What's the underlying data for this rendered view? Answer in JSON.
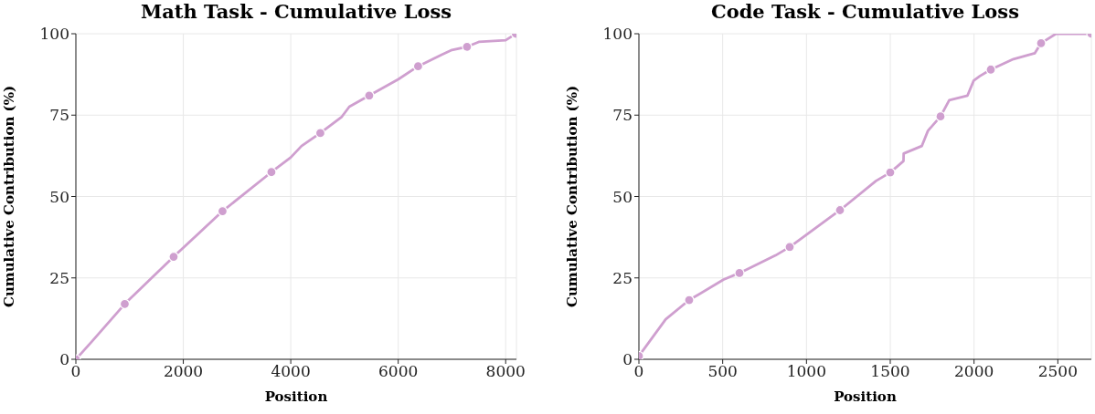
{
  "chart_data": [
    {
      "type": "line",
      "title": "Math Task - Cumulative Loss",
      "xlabel": "Position",
      "ylabel": "Cumulative Contribution (%)",
      "xlim": [
        0,
        8200
      ],
      "xticks": [
        0,
        2000,
        4000,
        6000,
        8000
      ],
      "ylim": [
        0,
        100
      ],
      "yticks": [
        0,
        25,
        50,
        75,
        100
      ],
      "grid": true,
      "series": [
        {
          "color": "#cf9fcf",
          "marker": "none",
          "x": [
            0,
            300,
            910,
            1820,
            2730,
            3640,
            4000,
            4200,
            4550,
            4950,
            5090,
            5460,
            6000,
            6370,
            6800,
            7000,
            7280,
            7500,
            8000,
            8190
          ],
          "values": [
            0,
            5.5,
            17,
            31.5,
            45.5,
            57.5,
            62,
            65.5,
            69.5,
            74.5,
            77.6,
            81,
            86,
            90,
            93.5,
            95,
            96,
            97.5,
            98,
            100
          ]
        },
        {
          "type": "scatter",
          "color": "#cf9fcf",
          "marker": "circle",
          "x": [
            0,
            910,
            1820,
            2730,
            3640,
            4550,
            5460,
            6370,
            7280,
            8190
          ],
          "values": [
            0,
            17,
            31.5,
            45.5,
            57.5,
            69.5,
            81,
            90,
            96,
            100
          ]
        }
      ]
    },
    {
      "type": "line",
      "title": "Code Task - Cumulative Loss",
      "xlabel": "Position",
      "ylabel": "Cumulative Contribution (%)",
      "xlim": [
        0,
        2700
      ],
      "xticks": [
        0,
        500,
        1000,
        1500,
        2000,
        2500
      ],
      "ylim": [
        0,
        100
      ],
      "yticks": [
        0,
        25,
        50,
        75,
        100
      ],
      "grid": true,
      "series": [
        {
          "color": "#cf9fcf",
          "marker": "none",
          "x": [
            0,
            160,
            300,
            506,
            600,
            815,
            900,
            1200,
            1415,
            1500,
            1579,
            1580,
            1688,
            1725,
            1800,
            1852,
            1961,
            1998,
            2035,
            2100,
            2235,
            2362,
            2400,
            2489,
            2700
          ],
          "values": [
            1,
            12.3,
            18.2,
            24.5,
            26.5,
            31.9,
            34.5,
            45.8,
            54.8,
            57.4,
            60.9,
            63.2,
            65.5,
            70.2,
            74.6,
            79.6,
            81,
            85.6,
            87,
            89,
            92.2,
            94,
            97.1,
            100,
            100
          ]
        },
        {
          "type": "scatter",
          "color": "#cf9fcf",
          "marker": "circle",
          "x": [
            0,
            300,
            600,
            900,
            1200,
            1500,
            1800,
            2100,
            2400,
            2700
          ],
          "values": [
            1,
            18.2,
            26.5,
            34.5,
            45.8,
            57.4,
            74.6,
            89,
            97.1,
            100
          ]
        }
      ]
    }
  ]
}
